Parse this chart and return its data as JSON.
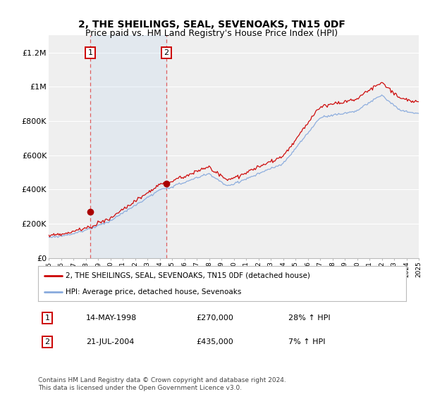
{
  "title": "2, THE SHEILINGS, SEAL, SEVENOAKS, TN15 0DF",
  "subtitle": "Price paid vs. HM Land Registry's House Price Index (HPI)",
  "ylim": [
    0,
    1300000
  ],
  "yticks": [
    0,
    200000,
    400000,
    600000,
    800000,
    1000000,
    1200000
  ],
  "ytick_labels": [
    "£0",
    "£200K",
    "£400K",
    "£600K",
    "£800K",
    "£1M",
    "£1.2M"
  ],
  "background_color": "#ffffff",
  "plot_bg_color": "#efefef",
  "grid_color": "#ffffff",
  "sale1_date": 1998.37,
  "sale1_price": 270000,
  "sale1_label": "1",
  "sale2_date": 2004.55,
  "sale2_price": 435000,
  "sale2_label": "2",
  "vline_color": "#e06060",
  "dot_color": "#aa0000",
  "hpi_line_color": "#88aadd",
  "price_line_color": "#cc0000",
  "legend_label_price": "2, THE SHEILINGS, SEAL, SEVENOAKS, TN15 0DF (detached house)",
  "legend_label_hpi": "HPI: Average price, detached house, Sevenoaks",
  "table_rows": [
    [
      "1",
      "14-MAY-1998",
      "£270,000",
      "28% ↑ HPI"
    ],
    [
      "2",
      "21-JUL-2004",
      "£435,000",
      "7% ↑ HPI"
    ]
  ],
  "footer": "Contains HM Land Registry data © Crown copyright and database right 2024.\nThis data is licensed under the Open Government Licence v3.0.",
  "title_fontsize": 10,
  "subtitle_fontsize": 9,
  "axis_fontsize": 8,
  "xstart": 1995,
  "xend": 2025
}
